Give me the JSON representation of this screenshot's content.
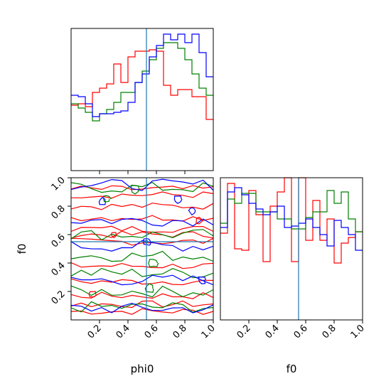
{
  "chart_data": {
    "type": "corner",
    "parameters": [
      "phi0",
      "f0"
    ],
    "xlabel_bottom_left": "phi0",
    "xlabel_bottom_right": "f0",
    "ylabel_left": "f0",
    "tick_labels": [
      "0.2",
      "0.4",
      "0.6",
      "0.8",
      "1.0"
    ],
    "axis_range": [
      0,
      1
    ],
    "series_colors": [
      "#ff0000",
      "#008000",
      "#0000ff"
    ],
    "truth_line_color": "#1f77b4",
    "truth": {
      "phi0": 0.53,
      "f0": 0.55
    },
    "hist_phi0": {
      "bin_edges": [
        0.0,
        0.05,
        0.1,
        0.15,
        0.2,
        0.25,
        0.3,
        0.35,
        0.4,
        0.45,
        0.5,
        0.55,
        0.6,
        0.65,
        0.7,
        0.75,
        0.8,
        0.85,
        0.9,
        0.95,
        1.0
      ],
      "ylim": [
        0,
        1.0
      ],
      "series": [
        {
          "color": "red",
          "values": [
            0.46,
            0.47,
            0.45,
            0.55,
            0.58,
            0.61,
            0.75,
            0.62,
            0.8,
            0.84,
            0.84,
            0.85,
            0.84,
            0.6,
            0.53,
            0.57,
            0.57,
            0.52,
            0.52,
            0.36
          ]
        },
        {
          "color": "green",
          "values": [
            0.47,
            0.44,
            0.41,
            0.35,
            0.4,
            0.43,
            0.48,
            0.55,
            0.55,
            0.62,
            0.7,
            0.78,
            0.86,
            0.9,
            0.9,
            0.86,
            0.78,
            0.68,
            0.58,
            0.53
          ]
        },
        {
          "color": "blue",
          "values": [
            0.53,
            0.52,
            0.47,
            0.38,
            0.4,
            0.4,
            0.41,
            0.42,
            0.48,
            0.62,
            0.68,
            0.8,
            0.88,
            0.96,
            0.92,
            0.96,
            0.9,
            0.96,
            0.83,
            0.66
          ]
        }
      ]
    },
    "hist_f0": {
      "bin_edges": [
        0.0,
        0.05,
        0.1,
        0.15,
        0.2,
        0.25,
        0.3,
        0.35,
        0.4,
        0.45,
        0.5,
        0.55,
        0.6,
        0.65,
        0.7,
        0.75,
        0.8,
        0.85,
        0.9,
        0.95,
        1.0
      ],
      "ylim": [
        0,
        1.0
      ],
      "series": [
        {
          "color": "red",
          "values": [
            0.61,
            0.96,
            0.5,
            0.49,
            0.91,
            0.74,
            0.41,
            0.8,
            0.9,
            1.0,
            0.41,
            1.0,
            0.56,
            0.84,
            0.56,
            0.71,
            0.4,
            0.54,
            0.58,
            0.62
          ]
        },
        {
          "color": "green",
          "values": [
            0.68,
            0.85,
            0.82,
            0.89,
            0.89,
            0.76,
            0.76,
            0.76,
            0.71,
            0.71,
            0.64,
            0.64,
            0.72,
            0.76,
            0.76,
            0.91,
            0.82,
            0.9,
            0.71,
            0.62
          ]
        },
        {
          "color": "blue",
          "values": [
            0.65,
            0.9,
            0.93,
            0.88,
            0.82,
            0.78,
            0.74,
            0.76,
            0.8,
            0.65,
            0.66,
            0.68,
            0.71,
            0.65,
            0.6,
            0.52,
            0.7,
            0.65,
            0.6,
            0.49
          ]
        }
      ]
    }
  }
}
